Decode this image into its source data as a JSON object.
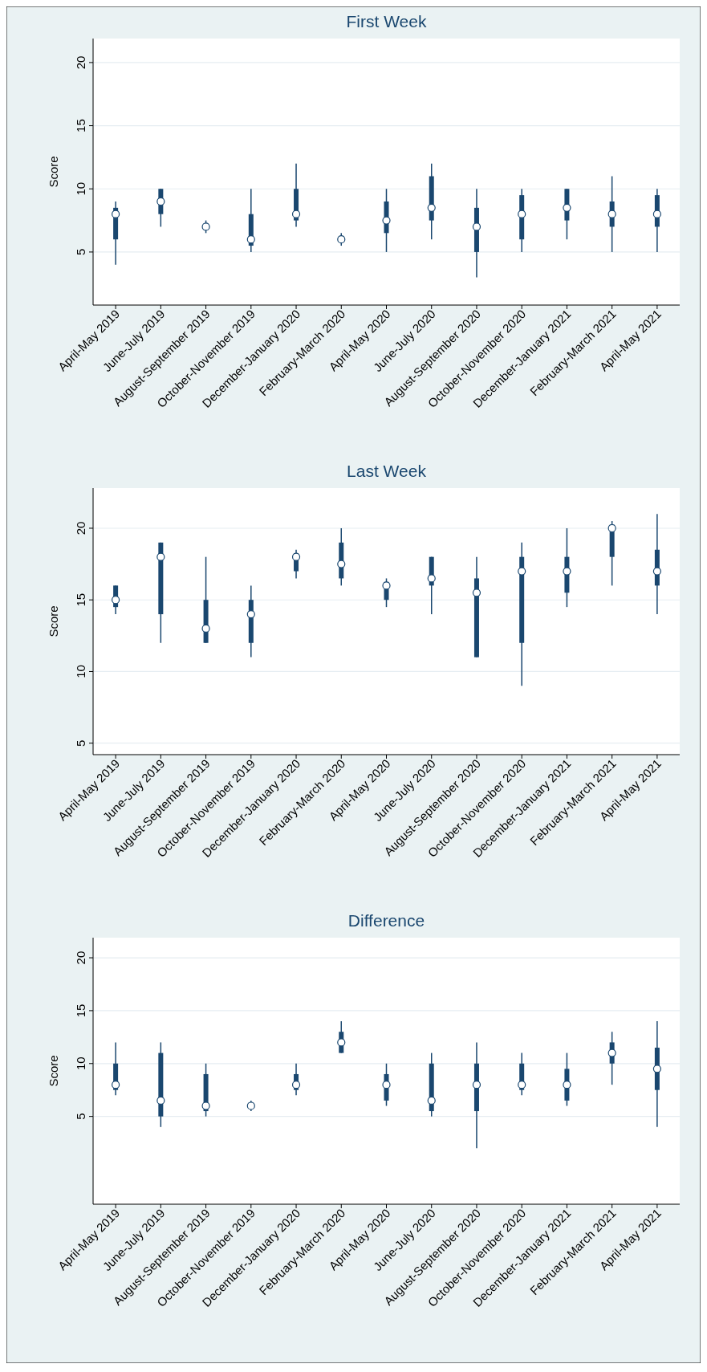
{
  "chart_data": [
    {
      "type": "box",
      "title": "First Week",
      "ylabel": "Score",
      "categories": [
        "April-May 2019",
        "June-July 2019",
        "August-September 2019",
        "October-November 2019",
        "December-January 2020",
        "February-March 2020",
        "April-May 2020",
        "June-July 2020",
        "August-September 2020",
        "October-November 2020",
        "December-January 2021",
        "February-March 2021",
        "April-May 2021"
      ],
      "ylim": [
        0.8,
        21.9
      ],
      "yticks": [
        5,
        10,
        15,
        20
      ],
      "grid": "y",
      "color": "#1a476f",
      "boxes": [
        {
          "low": 4,
          "q1": 6,
          "median": 8,
          "q3": 8.5,
          "high": 9
        },
        {
          "low": 7,
          "q1": 8,
          "median": 9,
          "q3": 10,
          "high": 10
        },
        {
          "low": 6.5,
          "q1": 6.75,
          "median": 7,
          "q3": 7.25,
          "high": 7.5
        },
        {
          "low": 5,
          "q1": 5.5,
          "median": 6,
          "q3": 8,
          "high": 10
        },
        {
          "low": 7,
          "q1": 7.5,
          "median": 8,
          "q3": 10,
          "high": 12
        },
        {
          "low": 5.5,
          "q1": 5.75,
          "median": 6,
          "q3": 6.25,
          "high": 6.5
        },
        {
          "low": 5,
          "q1": 6.5,
          "median": 7.5,
          "q3": 9,
          "high": 10
        },
        {
          "low": 6,
          "q1": 7.5,
          "median": 8.5,
          "q3": 11,
          "high": 12
        },
        {
          "low": 3,
          "q1": 5,
          "median": 7,
          "q3": 8.5,
          "high": 10
        },
        {
          "low": 5,
          "q1": 6,
          "median": 8,
          "q3": 9.5,
          "high": 10
        },
        {
          "low": 6,
          "q1": 7.5,
          "median": 8.5,
          "q3": 10,
          "high": 10
        },
        {
          "low": 5,
          "q1": 7,
          "median": 8,
          "q3": 9,
          "high": 11
        },
        {
          "low": 5,
          "q1": 7,
          "median": 8,
          "q3": 9.5,
          "high": 10
        }
      ]
    },
    {
      "type": "box",
      "title": "Last Week",
      "ylabel": "Score",
      "categories": [
        "April-May 2019",
        "June-July 2019",
        "August-September 2019",
        "October-November 2019",
        "December-January 2020",
        "February-March 2020",
        "April-May 2020",
        "June-July 2020",
        "August-September 2020",
        "October-November 2020",
        "December-January 2021",
        "February-March 2021",
        "April-May 2021"
      ],
      "ylim": [
        4.2,
        22.8
      ],
      "yticks": [
        5,
        10,
        15,
        20
      ],
      "grid": "y",
      "color": "#1a476f",
      "boxes": [
        {
          "low": 14,
          "q1": 14.5,
          "median": 15,
          "q3": 16,
          "high": 16
        },
        {
          "low": 12,
          "q1": 14,
          "median": 18,
          "q3": 19,
          "high": 19
        },
        {
          "low": 12,
          "q1": 12,
          "median": 13,
          "q3": 15,
          "high": 18
        },
        {
          "low": 11,
          "q1": 12,
          "median": 14,
          "q3": 15,
          "high": 16
        },
        {
          "low": 16.5,
          "q1": 17,
          "median": 18,
          "q3": 18.25,
          "high": 18.5
        },
        {
          "low": 16,
          "q1": 16.5,
          "median": 17.5,
          "q3": 19,
          "high": 20
        },
        {
          "low": 14.5,
          "q1": 15,
          "median": 16,
          "q3": 16.25,
          "high": 16.5
        },
        {
          "low": 14,
          "q1": 16,
          "median": 16.5,
          "q3": 18,
          "high": 18
        },
        {
          "low": 11,
          "q1": 11,
          "median": 15.5,
          "q3": 16.5,
          "high": 18
        },
        {
          "low": 9,
          "q1": 12,
          "median": 17,
          "q3": 18,
          "high": 19
        },
        {
          "low": 14.5,
          "q1": 15.5,
          "median": 17,
          "q3": 18,
          "high": 20
        },
        {
          "low": 16,
          "q1": 18,
          "median": 20,
          "q3": 20.25,
          "high": 20.5
        },
        {
          "low": 14,
          "q1": 16,
          "median": 17,
          "q3": 18.5,
          "high": 21
        }
      ]
    },
    {
      "type": "box",
      "title": "Difference",
      "ylabel": "Score",
      "categories": [
        "April-May 2019",
        "June-July 2019",
        "August-September 2019",
        "October-November 2019",
        "December-January 2020",
        "February-March 2020",
        "April-May 2020",
        "June-July 2020",
        "August-September 2020",
        "October-November 2020",
        "December-January 2021",
        "February-March 2021",
        "April-May 2021"
      ],
      "ylim": [
        -3.3,
        21.9
      ],
      "yticks": [
        5,
        10,
        15,
        20
      ],
      "grid": "y",
      "color": "#1a476f",
      "boxes": [
        {
          "low": 7,
          "q1": 7.5,
          "median": 8,
          "q3": 10,
          "high": 12
        },
        {
          "low": 4,
          "q1": 5,
          "median": 6.5,
          "q3": 11,
          "high": 12
        },
        {
          "low": 5,
          "q1": 5.5,
          "median": 6,
          "q3": 9,
          "high": 10
        },
        {
          "low": 5.5,
          "q1": 5.75,
          "median": 6,
          "q3": 6.25,
          "high": 6.5
        },
        {
          "low": 7,
          "q1": 7.5,
          "median": 8,
          "q3": 9,
          "high": 10
        },
        {
          "low": 11,
          "q1": 11,
          "median": 12,
          "q3": 13,
          "high": 14
        },
        {
          "low": 6,
          "q1": 6.5,
          "median": 8,
          "q3": 9,
          "high": 10
        },
        {
          "low": 5,
          "q1": 5.5,
          "median": 6.5,
          "q3": 10,
          "high": 11
        },
        {
          "low": 2,
          "q1": 5.5,
          "median": 8,
          "q3": 10,
          "high": 12
        },
        {
          "low": 7,
          "q1": 7.5,
          "median": 8,
          "q3": 10,
          "high": 11
        },
        {
          "low": 6,
          "q1": 6.5,
          "median": 8,
          "q3": 9.5,
          "high": 11
        },
        {
          "low": 8,
          "q1": 10,
          "median": 11,
          "q3": 12,
          "high": 13
        },
        {
          "low": 4,
          "q1": 7.5,
          "median": 9.5,
          "q3": 11.5,
          "high": 14
        }
      ]
    }
  ]
}
